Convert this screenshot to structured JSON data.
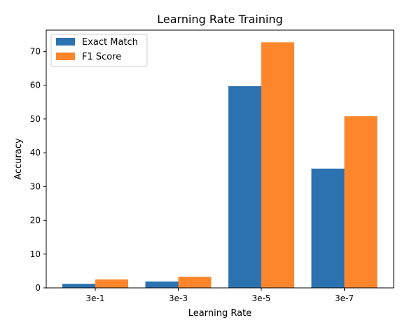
{
  "chart_data": {
    "type": "bar",
    "title": "Learning Rate Training",
    "xlabel": "Learning Rate",
    "ylabel": "Accuracy",
    "categories": [
      "3e-1",
      "3e-3",
      "3e-5",
      "3e-7"
    ],
    "series": [
      {
        "name": "Exact Match",
        "color": "#2c72b0",
        "values": [
          1.2,
          1.9,
          59.7,
          35.3
        ]
      },
      {
        "name": "F1 Score",
        "color": "#fd862d",
        "values": [
          2.5,
          3.3,
          72.7,
          50.8
        ]
      }
    ],
    "ylim": [
      0,
      76.3
    ],
    "yticks": [
      "0",
      "10",
      "20",
      "30",
      "40",
      "50",
      "60",
      "70"
    ],
    "legend_position": "top-left",
    "grid": false
  }
}
